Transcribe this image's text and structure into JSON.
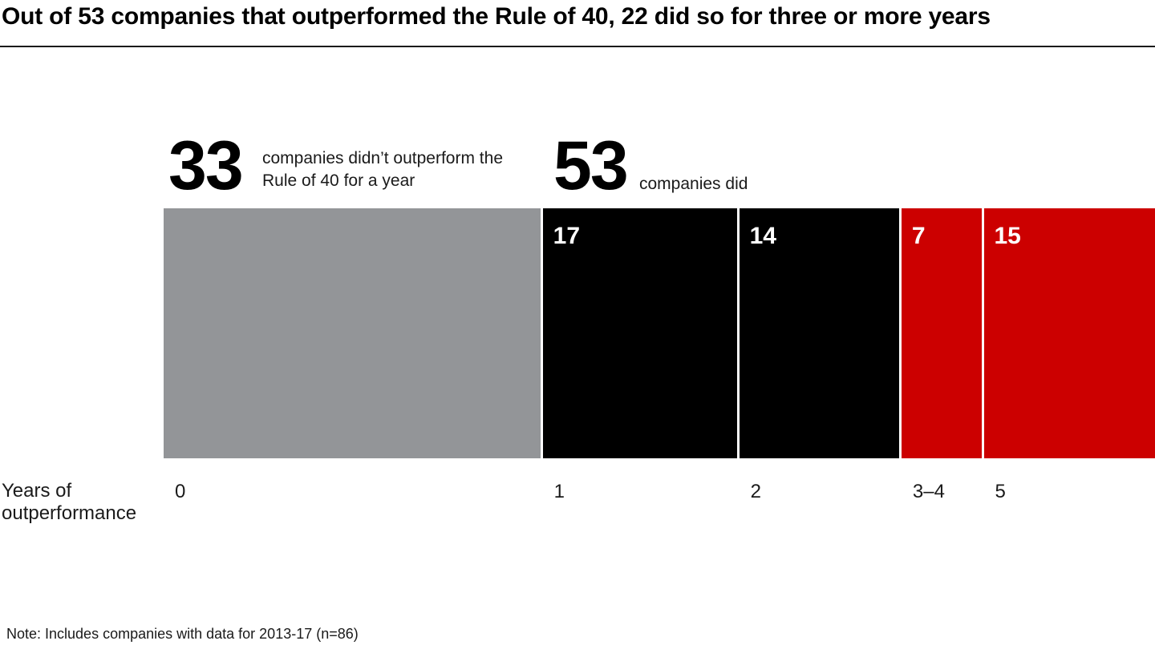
{
  "header": {
    "title": "Out of 53 companies that outperformed the Rule of 40, 22 did so for three or more years"
  },
  "stats": {
    "left": {
      "number": "33",
      "caption": "companies didn’t outperform the Rule of 40 for a year"
    },
    "right": {
      "number": "53",
      "caption": "companies did"
    }
  },
  "axis": {
    "title": "Years of outperformance"
  },
  "note": "Note: Includes companies with data for 2013-17 (n=86)",
  "colors": {
    "gray": "#939598",
    "black": "#000000",
    "red": "#CC0000",
    "bar_value_text": "#FFFFFF",
    "divider": "#1A1A1A"
  },
  "chart_data": {
    "type": "bar",
    "variant": "horizontal-proportional-segments",
    "title": "Out of 53 companies that outperformed the Rule of 40, 22 did so for three or more years",
    "xlabel": "Years of outperformance",
    "ylabel": "",
    "total": 86,
    "grid": false,
    "legend": false,
    "categories": [
      "0",
      "1",
      "2",
      "3–4",
      "5"
    ],
    "values": [
      33,
      17,
      14,
      7,
      15
    ],
    "segments": [
      {
        "category": "0",
        "value": 33,
        "color": "#939598",
        "show_value": false
      },
      {
        "category": "1",
        "value": 17,
        "color": "#000000",
        "show_value": true
      },
      {
        "category": "2",
        "value": 14,
        "color": "#000000",
        "show_value": true
      },
      {
        "category": "3–4",
        "value": 7,
        "color": "#CC0000",
        "show_value": true
      },
      {
        "category": "5",
        "value": 15,
        "color": "#CC0000",
        "show_value": true
      }
    ],
    "annotations": [
      {
        "number": "33",
        "text": "companies didn’t outperform the Rule of 40 for a year",
        "applies_to": [
          "0"
        ]
      },
      {
        "number": "53",
        "text": "companies did",
        "applies_to": [
          "1",
          "2",
          "3–4",
          "5"
        ]
      }
    ],
    "note": "Note: Includes companies with data for 2013-17 (n=86)"
  }
}
